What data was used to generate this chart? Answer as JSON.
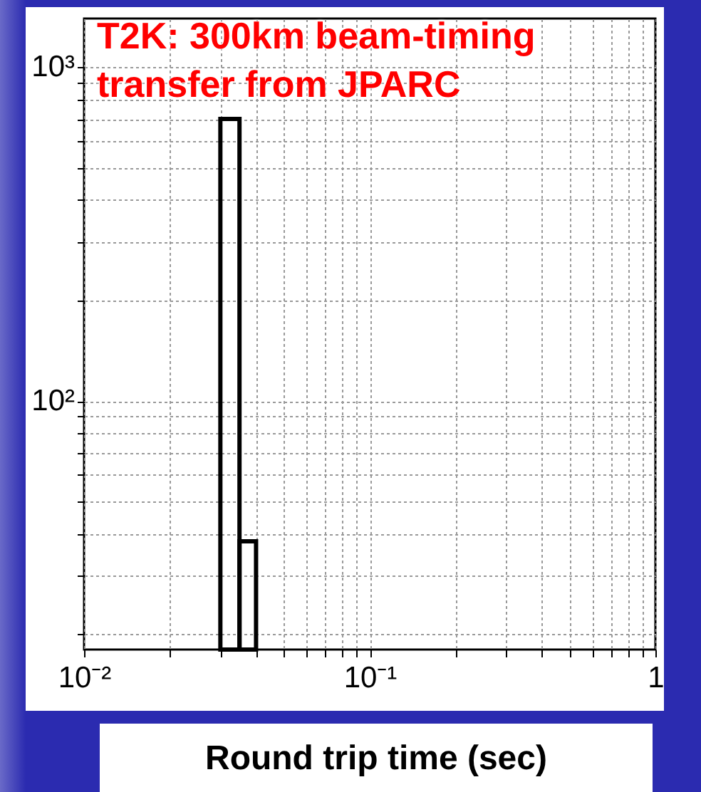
{
  "chart_data": {
    "type": "histogram",
    "title": "T2K: 300km beam-timing transfer from JPARC",
    "xlabel": "Round trip time (sec)",
    "bins": [
      0.03,
      0.035,
      0.04
    ],
    "values": [
      700,
      38
    ],
    "color": "#000000",
    "log": "xy",
    "grid": true,
    "xlim": [
      0.01,
      1
    ],
    "xticks": [
      {
        "value": 0.01,
        "label": "10⁻²"
      },
      {
        "value": 0.02,
        "label": null
      },
      {
        "value": 0.03,
        "label": null
      },
      {
        "value": 0.04,
        "label": null
      },
      {
        "value": 0.05,
        "label": null
      },
      {
        "value": 0.06,
        "label": null
      },
      {
        "value": 0.07,
        "label": null
      },
      {
        "value": 0.08,
        "label": null
      },
      {
        "value": 0.09,
        "label": null
      },
      {
        "value": 0.1,
        "label": "10⁻¹"
      },
      {
        "value": 0.2,
        "label": null
      },
      {
        "value": 0.3,
        "label": null
      },
      {
        "value": 0.4,
        "label": null
      },
      {
        "value": 0.5,
        "label": null
      },
      {
        "value": 0.6,
        "label": null
      },
      {
        "value": 0.7,
        "label": null
      },
      {
        "value": 0.8,
        "label": null
      },
      {
        "value": 0.9,
        "label": null
      },
      1
    ],
    "ylim": [
      18,
      1400
    ],
    "yticks": [
      {
        "value": 20,
        "label": null
      },
      {
        "value": 30,
        "label": null
      },
      {
        "value": 40,
        "label": null
      },
      {
        "value": 50,
        "label": null
      },
      {
        "value": 60,
        "label": null
      },
      {
        "value": 70,
        "label": null
      },
      {
        "value": 80,
        "label": null
      },
      {
        "value": 90,
        "label": null
      },
      {
        "value": 100,
        "label": "10²"
      },
      {
        "value": 200,
        "label": null
      },
      {
        "value": 300,
        "label": null
      },
      {
        "value": 400,
        "label": null
      },
      {
        "value": 500,
        "label": null
      },
      {
        "value": 600,
        "label": null
      },
      {
        "value": 700,
        "label": null
      },
      {
        "value": 800,
        "label": null
      },
      {
        "value": 900,
        "label": null
      },
      {
        "value": 1000,
        "label": "10³"
      }
    ]
  }
}
